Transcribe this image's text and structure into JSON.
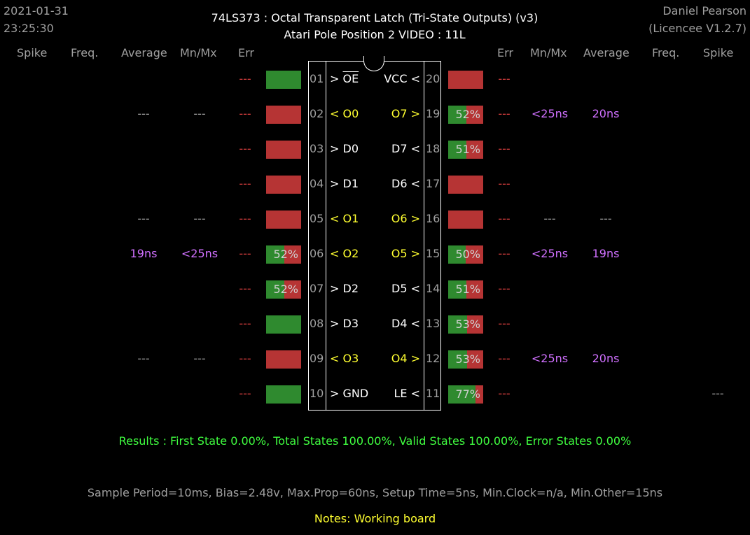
{
  "header": {
    "date": "2021-01-31",
    "time": "23:25:30",
    "title_line1": "74LS373  :  Octal Transparent Latch (Tri-State Outputs) (v3)",
    "title_line2": "Atari Pole Position 2 VIDEO : 11L",
    "author": "Daniel Pearson",
    "licence": "(Licencee V1.2.7)"
  },
  "columns": {
    "left": [
      "Spike",
      "Freq.",
      "Average",
      "Mn/Mx",
      "Err"
    ],
    "right": [
      "Err",
      "Mn/Mx",
      "Average",
      "Freq.",
      "Spike"
    ]
  },
  "left_pins": [
    {
      "num": "01",
      "dir": ">",
      "name": "OE",
      "overline": true,
      "color": "white",
      "err": "---",
      "mnmx": "",
      "avg": "",
      "freq": "",
      "spike": "",
      "bar": 1.0
    },
    {
      "num": "02",
      "dir": "<",
      "name": "O0",
      "overline": false,
      "color": "yellow",
      "err": "---",
      "mnmx": "---",
      "avg": "---",
      "freq": "",
      "spike": "",
      "bar": 0.0
    },
    {
      "num": "03",
      "dir": ">",
      "name": "D0",
      "overline": false,
      "color": "white",
      "err": "---",
      "mnmx": "",
      "avg": "",
      "freq": "",
      "spike": "",
      "bar": 0.0
    },
    {
      "num": "04",
      "dir": ">",
      "name": "D1",
      "overline": false,
      "color": "white",
      "err": "---",
      "mnmx": "",
      "avg": "",
      "freq": "",
      "spike": "",
      "bar": 0.0
    },
    {
      "num": "05",
      "dir": "<",
      "name": "O1",
      "overline": false,
      "color": "yellow",
      "err": "---",
      "mnmx": "---",
      "avg": "---",
      "freq": "",
      "spike": "",
      "bar": 0.0
    },
    {
      "num": "06",
      "dir": "<",
      "name": "O2",
      "overline": false,
      "color": "yellow",
      "err": "---",
      "mnmx": "<25ns",
      "avg": "19ns",
      "freq": "",
      "spike": "",
      "bar": 0.52,
      "pct": "52%"
    },
    {
      "num": "07",
      "dir": ">",
      "name": "D2",
      "overline": false,
      "color": "white",
      "err": "---",
      "mnmx": "",
      "avg": "",
      "freq": "",
      "spike": "",
      "bar": 0.52,
      "pct": "52%"
    },
    {
      "num": "08",
      "dir": ">",
      "name": "D3",
      "overline": false,
      "color": "white",
      "err": "---",
      "mnmx": "",
      "avg": "",
      "freq": "",
      "spike": "",
      "bar": 1.0
    },
    {
      "num": "09",
      "dir": "<",
      "name": "O3",
      "overline": false,
      "color": "yellow",
      "err": "---",
      "mnmx": "---",
      "avg": "---",
      "freq": "",
      "spike": "",
      "bar": 0.0
    },
    {
      "num": "10",
      "dir": ">",
      "name": "GND",
      "overline": false,
      "color": "white",
      "err": "---",
      "mnmx": "",
      "avg": "",
      "freq": "",
      "spike": "",
      "bar": 1.0
    }
  ],
  "right_pins": [
    {
      "num": "20",
      "dir": "<",
      "name": "VCC",
      "color": "white",
      "err": "---",
      "mnmx": "",
      "avg": "",
      "freq": "",
      "spike": "",
      "bar": 0.0
    },
    {
      "num": "19",
      "dir": ">",
      "name": "O7",
      "color": "yellow",
      "err": "---",
      "mnmx": "<25ns",
      "avg": "20ns",
      "freq": "",
      "spike": "",
      "bar": 0.52,
      "pct": "52%"
    },
    {
      "num": "18",
      "dir": "<",
      "name": "D7",
      "color": "white",
      "err": "---",
      "mnmx": "",
      "avg": "",
      "freq": "",
      "spike": "",
      "bar": 0.51,
      "pct": "51%"
    },
    {
      "num": "17",
      "dir": "<",
      "name": "D6",
      "color": "white",
      "err": "---",
      "mnmx": "",
      "avg": "",
      "freq": "",
      "spike": "",
      "bar": 0.0
    },
    {
      "num": "16",
      "dir": ">",
      "name": "O6",
      "color": "yellow",
      "err": "---",
      "mnmx": "---",
      "avg": "---",
      "freq": "",
      "spike": "",
      "bar": 0.0
    },
    {
      "num": "15",
      "dir": ">",
      "name": "O5",
      "color": "yellow",
      "err": "---",
      "mnmx": "<25ns",
      "avg": "19ns",
      "freq": "",
      "spike": "",
      "bar": 0.5,
      "pct": "50%"
    },
    {
      "num": "14",
      "dir": "<",
      "name": "D5",
      "color": "white",
      "err": "---",
      "mnmx": "",
      "avg": "",
      "freq": "",
      "spike": "",
      "bar": 0.51,
      "pct": "51%"
    },
    {
      "num": "13",
      "dir": "<",
      "name": "D4",
      "color": "white",
      "err": "---",
      "mnmx": "",
      "avg": "",
      "freq": "",
      "spike": "",
      "bar": 0.53,
      "pct": "53%"
    },
    {
      "num": "12",
      "dir": ">",
      "name": "O4",
      "color": "yellow",
      "err": "---",
      "mnmx": "<25ns",
      "avg": "20ns",
      "freq": "",
      "spike": "",
      "bar": 0.53,
      "pct": "53%"
    },
    {
      "num": "11",
      "dir": "<",
      "name": "LE",
      "color": "white",
      "err": "---",
      "mnmx": "",
      "avg": "",
      "freq": "",
      "spike": "---",
      "bar": 0.77,
      "pct": "77%"
    }
  ],
  "results": "Results  :  First State 0.00%,  Total States 100.00%,  Valid States 100.00%,  Error States 0.00%",
  "sample": "Sample Period=10ms,  Bias=2.48v,  Max.Prop=60ns,  Setup Time=5ns,  Min.Clock=n/a,  Min.Other=15ns",
  "notes": "Notes:  Working board",
  "colors": {
    "bar_green": "#2f8a2f",
    "bar_red": "#b63434",
    "yellow": "#ffff30",
    "purple": "#d070ff",
    "err_red": "#e04040",
    "results_green": "#40ff40"
  }
}
